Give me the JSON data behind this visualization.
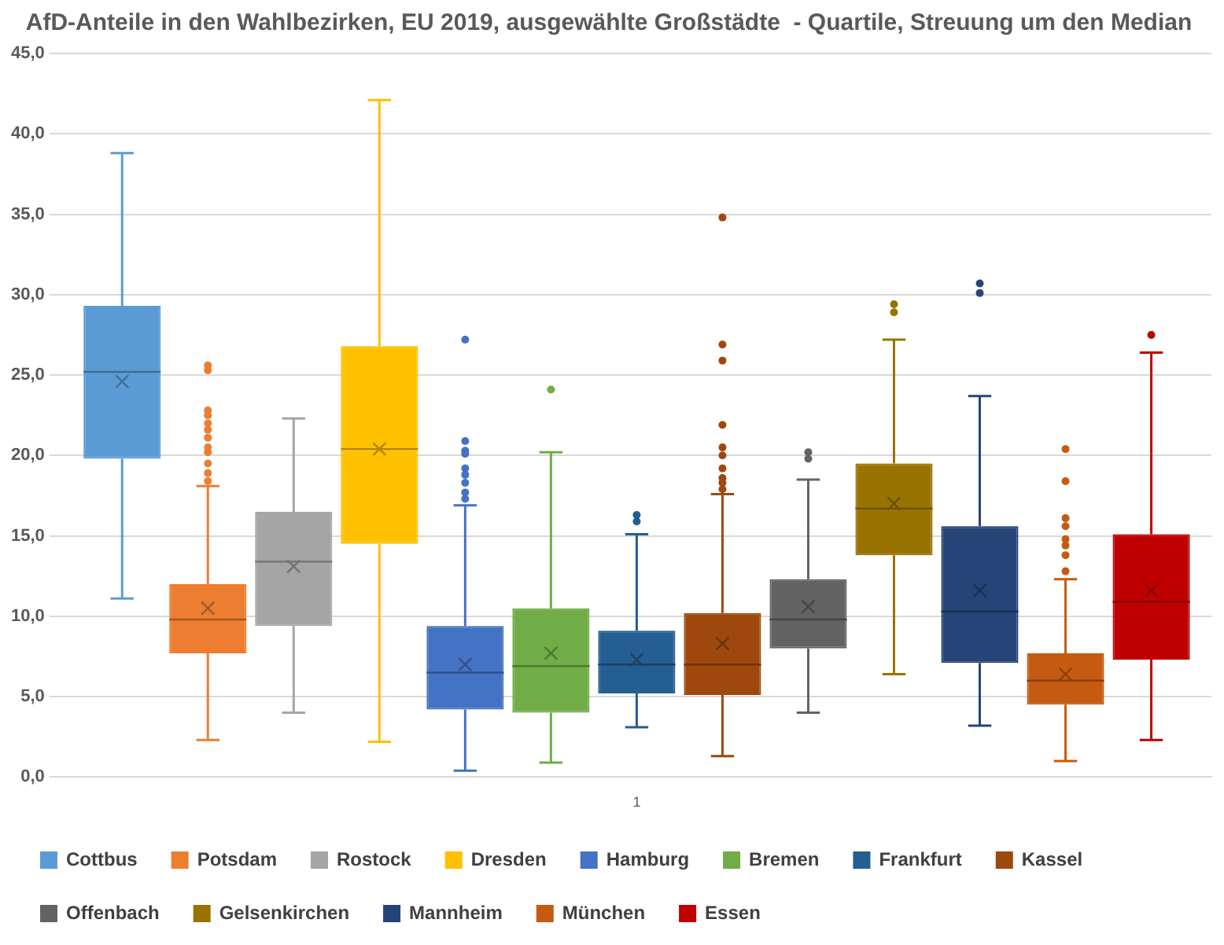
{
  "chart_data": {
    "type": "box",
    "title": "AfD-Anteile in den Wahlbezirken, EU 2019, ausgewählte Großstädte  - Quartile, Streuung um den Median",
    "categories": [
      "1"
    ],
    "ylim": [
      0,
      45
    ],
    "yticks": [
      {
        "value": 0,
        "label": "0,0"
      },
      {
        "value": 5,
        "label": "5,0"
      },
      {
        "value": 10,
        "label": "10,0"
      },
      {
        "value": 15,
        "label": "15,0"
      },
      {
        "value": 20,
        "label": "20,0"
      },
      {
        "value": 25,
        "label": "25,0"
      },
      {
        "value": 30,
        "label": "30,0"
      },
      {
        "value": 35,
        "label": "35,0"
      },
      {
        "value": 40,
        "label": "40,0"
      },
      {
        "value": 45,
        "label": "45,0"
      }
    ],
    "grid": "y",
    "legend": "bottom",
    "series": [
      {
        "name": "Cottbus",
        "color": "#5b9bd5",
        "boxes": [
          {
            "low": 11.1,
            "q1": 19.8,
            "median": 25.2,
            "q3": 29.3,
            "high": 38.8,
            "mean": 24.6
          }
        ]
      },
      {
        "name": "Potsdam",
        "color": "#ed7d31",
        "boxes": [
          {
            "low": 2.3,
            "q1": 7.7,
            "median": 9.8,
            "q3": 12,
            "high": 18.1,
            "mean": 10.5,
            "outliers": [
              25.6,
              25.3,
              22.8,
              22.5,
              22,
              21.6,
              21.1,
              20.5,
              20.2,
              19.5,
              18.9,
              18.4
            ]
          }
        ]
      },
      {
        "name": "Rostock",
        "color": "#a5a5a5",
        "boxes": [
          {
            "low": 4,
            "q1": 9.4,
            "median": 13.4,
            "q3": 16.5,
            "high": 22.3,
            "mean": 13.1
          }
        ]
      },
      {
        "name": "Dresden",
        "color": "#ffc000",
        "boxes": [
          {
            "low": 2.2,
            "q1": 14.5,
            "median": 20.4,
            "q3": 26.8,
            "high": 42.1,
            "mean": 20.4
          }
        ]
      },
      {
        "name": "Hamburg",
        "color": "#4472c4",
        "boxes": [
          {
            "low": 0.4,
            "q1": 4.2,
            "median": 6.5,
            "q3": 9.4,
            "high": 16.9,
            "mean": 7,
            "outliers": [
              27.2,
              20.9,
              20.3,
              20.1,
              19.2,
              18.8,
              18.3,
              17.7,
              17.3
            ]
          }
        ]
      },
      {
        "name": "Bremen",
        "color": "#70ad47",
        "boxes": [
          {
            "low": 0.9,
            "q1": 4,
            "median": 6.9,
            "q3": 10.5,
            "high": 20.2,
            "mean": 7.7,
            "outliers": [
              24.1
            ]
          }
        ]
      },
      {
        "name": "Frankfurt",
        "color": "#255e91",
        "boxes": [
          {
            "low": 3.1,
            "q1": 5.2,
            "median": 7,
            "q3": 9.1,
            "high": 15.1,
            "mean": 7.3,
            "outliers": [
              16.3,
              15.9
            ]
          }
        ]
      },
      {
        "name": "Kassel",
        "color": "#9e480e",
        "boxes": [
          {
            "low": 1.3,
            "q1": 5.1,
            "median": 7,
            "q3": 10.2,
            "high": 17.6,
            "mean": 8.3,
            "outliers": [
              34.8,
              26.9,
              25.9,
              21.9,
              20.5,
              20,
              19.2,
              18.6,
              18.3,
              17.9
            ]
          }
        ]
      },
      {
        "name": "Offenbach",
        "color": "#636363",
        "boxes": [
          {
            "low": 4,
            "q1": 8,
            "median": 9.8,
            "q3": 12.3,
            "high": 18.5,
            "mean": 10.6,
            "outliers": [
              20.2,
              19.8
            ]
          }
        ]
      },
      {
        "name": "Gelsenkirchen",
        "color": "#997300",
        "boxes": [
          {
            "low": 6.4,
            "q1": 13.8,
            "median": 16.7,
            "q3": 19.5,
            "high": 27.2,
            "mean": 17,
            "outliers": [
              29.4,
              28.9
            ]
          }
        ]
      },
      {
        "name": "Mannheim",
        "color": "#264478",
        "boxes": [
          {
            "low": 3.2,
            "q1": 7.1,
            "median": 10.3,
            "q3": 15.6,
            "high": 23.7,
            "mean": 11.6,
            "outliers": [
              30.7,
              30.1
            ]
          }
        ]
      },
      {
        "name": "München",
        "color": "#c55a11",
        "boxes": [
          {
            "low": 1,
            "q1": 4.5,
            "median": 6,
            "q3": 7.7,
            "high": 12.3,
            "mean": 6.4,
            "outliers": [
              20.4,
              18.4,
              16.1,
              15.6,
              14.8,
              14.4,
              13.8,
              12.8
            ]
          }
        ]
      },
      {
        "name": "Essen",
        "color": "#c00000",
        "boxes": [
          {
            "low": 2.3,
            "q1": 7.3,
            "median": 10.9,
            "q3": 15.1,
            "high": 26.4,
            "mean": 11.6,
            "outliers": [
              27.5
            ]
          }
        ]
      }
    ]
  }
}
